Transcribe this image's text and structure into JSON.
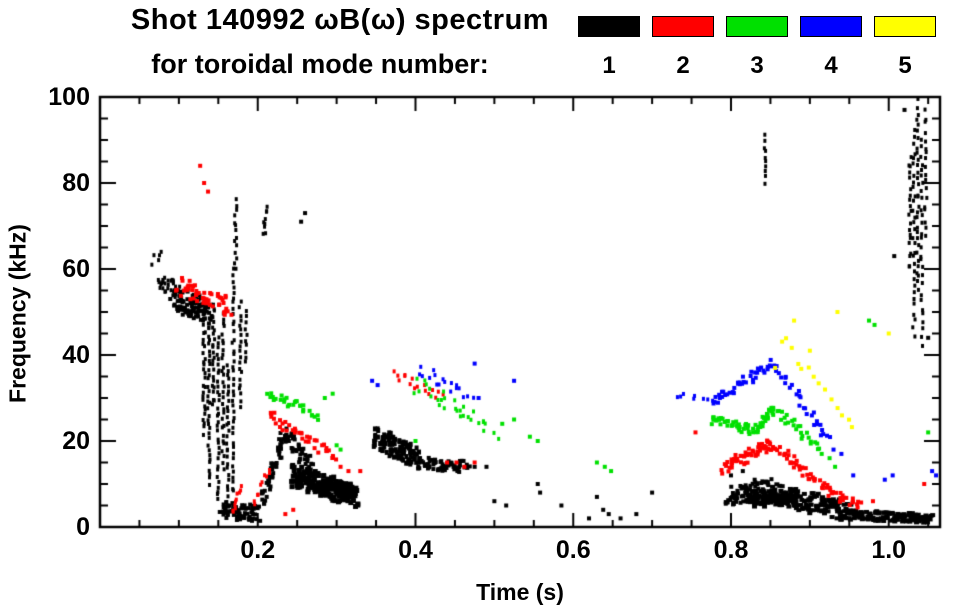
{
  "title": {
    "line1": "Shot 140992 ωB(ω) spectrum",
    "line2": "for toroidal mode number:"
  },
  "legend": {
    "entries": [
      {
        "label": "1",
        "color": "#000000"
      },
      {
        "label": "2",
        "color": "#ff0000"
      },
      {
        "label": "3",
        "color": "#00e000"
      },
      {
        "label": "4",
        "color": "#0000ff"
      },
      {
        "label": "5",
        "color": "#ffff00"
      }
    ]
  },
  "chart_data": {
    "type": "scatter",
    "title": "Shot 140992 ωB(ω) spectrum for toroidal mode number",
    "xlabel": "Time (s)",
    "ylabel": "Frequency (kHz)",
    "xlim": [
      0,
      1.065
    ],
    "ylim": [
      0,
      100
    ],
    "xticks": [
      0.2,
      0.4,
      0.6,
      0.8,
      1.0
    ],
    "xtick_labels": [
      "0.2",
      "0.4",
      "0.6",
      "0.8",
      "1.0"
    ],
    "yticks": [
      0,
      20,
      40,
      60,
      80,
      100
    ],
    "ytick_labels": [
      "0",
      "20",
      "40",
      "60",
      "80",
      "100"
    ],
    "x_minor": 0.05,
    "y_minor": 5,
    "grid": false,
    "legend_position": "top-right",
    "series": [
      {
        "name": "toroidal mode n=1",
        "label": "1",
        "color": "#000000",
        "segments": [
          {
            "t": [
              0.065,
              0.078
            ],
            "f": [
              62,
              63
            ],
            "n": 5,
            "jt": 0.003,
            "jf": 1
          },
          {
            "t": [
              0.075,
              0.1
            ],
            "f": [
              57,
              55
            ],
            "n": 30,
            "jt": 0.005,
            "jf": 2.2
          },
          {
            "t": [
              0.095,
              0.138
            ],
            "f": [
              53,
              50
            ],
            "n": 90,
            "jt": 0.006,
            "jf": 2.8,
            "w": 4,
            "h": 4
          },
          {
            "t": [
              0.132,
              0.132
            ],
            "f": [
              22,
              50
            ],
            "n": 28,
            "jt": 0.0015,
            "jf": 0.6
          },
          {
            "t": [
              0.138,
              0.138
            ],
            "f": [
              10,
              48
            ],
            "n": 34,
            "jt": 0.0015,
            "jf": 0.6
          },
          {
            "t": [
              0.144,
              0.144
            ],
            "f": [
              28,
              52
            ],
            "n": 24,
            "jt": 0.0015,
            "jf": 0.6
          },
          {
            "t": [
              0.15,
              0.15
            ],
            "f": [
              6,
              44
            ],
            "n": 32,
            "jt": 0.0015,
            "jf": 0.6
          },
          {
            "t": [
              0.156,
              0.156
            ],
            "f": [
              14,
              50
            ],
            "n": 30,
            "jt": 0.0015,
            "jf": 0.6
          },
          {
            "t": [
              0.162,
              0.162
            ],
            "f": [
              5,
              38
            ],
            "n": 28,
            "jt": 0.0015,
            "jf": 0.6
          },
          {
            "t": [
              0.169,
              0.169
            ],
            "f": [
              8,
              60
            ],
            "n": 40,
            "jt": 0.0015,
            "jf": 0.6
          },
          {
            "t": [
              0.172,
              0.172
            ],
            "f": [
              60,
              76
            ],
            "n": 14,
            "jt": 0.0015,
            "jf": 0.6
          },
          {
            "t": [
              0.178,
              0.178
            ],
            "f": [
              28,
              52
            ],
            "n": 20,
            "jt": 0.0015,
            "jf": 0.6
          },
          {
            "t": [
              0.185,
              0.185
            ],
            "f": [
              38,
              50
            ],
            "n": 10,
            "jt": 0.0015,
            "jf": 0.6
          },
          {
            "t": [
              0.208,
              0.211
            ],
            "f": [
              68,
              75
            ],
            "n": 9,
            "jt": 0.002,
            "jf": 0.8
          },
          {
            "t": [
              0.155,
              0.2
            ],
            "f": [
              4,
              3
            ],
            "n": 70,
            "jt": 0.004,
            "jf": 2,
            "w": 4,
            "h": 4
          },
          {
            "t": [
              0.205,
              0.235
            ],
            "f": [
              6,
              22
            ],
            "n": 55,
            "jt": 0.004,
            "jf": 2,
            "w": 4,
            "h": 4
          },
          {
            "t": [
              0.235,
              0.27
            ],
            "f": [
              22,
              13
            ],
            "n": 45,
            "jt": 0.004,
            "jf": 2,
            "w": 4,
            "h": 4
          },
          {
            "t": [
              0.245,
              0.325
            ],
            "f": [
              12,
              7
            ],
            "n": 160,
            "jt": 0.005,
            "jf": 2.6,
            "w": 5,
            "h": 5
          },
          {
            "t": [
              0.28,
              0.322
            ],
            "f": [
              9,
              8
            ],
            "n": 60,
            "jt": 0.004,
            "jf": 1.8,
            "w": 5,
            "h": 5
          },
          {
            "t": [
              0.35,
              0.4
            ],
            "f": [
              21,
              16
            ],
            "n": 100,
            "jt": 0.005,
            "jf": 2.4,
            "w": 4,
            "h": 5
          },
          {
            "t": [
              0.4,
              0.465
            ],
            "f": [
              15,
              14
            ],
            "n": 70,
            "jt": 0.005,
            "jf": 1.4,
            "w": 4,
            "h": 4
          },
          {
            "t": [
              0.843,
              0.843
            ],
            "f": [
              80,
              91
            ],
            "n": 10,
            "jt": 0.001,
            "jf": 0.6
          },
          {
            "t": [
              0.795,
              0.85
            ],
            "f": [
              7,
              9
            ],
            "n": 80,
            "jt": 0.004,
            "jf": 2.2,
            "w": 4,
            "h": 4
          },
          {
            "t": [
              0.85,
              0.95
            ],
            "f": [
              8,
              3.5
            ],
            "n": 140,
            "jt": 0.005,
            "jf": 2.4,
            "w": 5,
            "h": 4
          },
          {
            "t": [
              0.82,
              0.88
            ],
            "f": [
              6,
              7
            ],
            "n": 60,
            "jt": 0.004,
            "jf": 1.6,
            "w": 5,
            "h": 5
          },
          {
            "t": [
              0.95,
              1.055
            ],
            "f": [
              2.8,
              2
            ],
            "n": 120,
            "jt": 0.005,
            "jf": 1.1,
            "w": 5,
            "h": 4
          },
          {
            "t": [
              1.027,
              1.027
            ],
            "f": [
              60,
              86
            ],
            "n": 20,
            "jt": 0.0015,
            "jf": 0.8
          },
          {
            "t": [
              1.032,
              1.032
            ],
            "f": [
              45,
              92
            ],
            "n": 30,
            "jt": 0.0015,
            "jf": 0.8
          },
          {
            "t": [
              1.037,
              1.037
            ],
            "f": [
              55,
              99
            ],
            "n": 30,
            "jt": 0.0015,
            "jf": 0.8
          },
          {
            "t": [
              1.042,
              1.042
            ],
            "f": [
              42,
              90
            ],
            "n": 28,
            "jt": 0.0015,
            "jf": 0.8
          },
          {
            "t": [
              1.047,
              1.047
            ],
            "f": [
              68,
              97
            ],
            "n": 18,
            "jt": 0.0015,
            "jf": 0.8
          }
        ],
        "points": [
          [
            0.255,
            71
          ],
          [
            0.26,
            73
          ],
          [
            0.475,
            14
          ],
          [
            0.49,
            14
          ],
          [
            0.5,
            6
          ],
          [
            0.515,
            5
          ],
          [
            0.555,
            10
          ],
          [
            0.558,
            8
          ],
          [
            0.585,
            5
          ],
          [
            0.62,
            2
          ],
          [
            0.63,
            7
          ],
          [
            0.638,
            4
          ],
          [
            0.645,
            3
          ],
          [
            0.66,
            2
          ],
          [
            0.68,
            3
          ],
          [
            0.7,
            8
          ],
          [
            0.8,
            12
          ],
          [
            0.815,
            13
          ],
          [
            0.83,
            11
          ],
          [
            1.007,
            63
          ],
          [
            1.02,
            97
          ],
          [
            1.05,
            44
          ]
        ]
      },
      {
        "name": "toroidal mode n=2",
        "label": "2",
        "color": "#ff0000",
        "segments": [
          {
            "t": [
              0.1,
              0.165
            ],
            "f": [
              56,
              51
            ],
            "n": 55,
            "jt": 0.005,
            "jf": 2.2,
            "w": 4,
            "h": 4
          },
          {
            "t": [
              0.168,
              0.178
            ],
            "f": [
              3,
              9
            ],
            "n": 10,
            "jt": 0.002,
            "jf": 0.8
          },
          {
            "t": [
              0.195,
              0.215
            ],
            "f": [
              5,
              14
            ],
            "n": 10,
            "jt": 0.003,
            "jf": 1
          },
          {
            "t": [
              0.215,
              0.3
            ],
            "f": [
              26,
              16
            ],
            "n": 40,
            "jt": 0.004,
            "jf": 1.4,
            "w": 4,
            "h": 4
          },
          {
            "t": [
              0.37,
              0.435
            ],
            "f": [
              36,
              30
            ],
            "n": 16,
            "jt": 0.004,
            "jf": 1.2
          },
          {
            "t": [
              0.79,
              0.852
            ],
            "f": [
              13.5,
              19.5
            ],
            "n": 55,
            "jt": 0.004,
            "jf": 1.4,
            "w": 4,
            "h": 4
          },
          {
            "t": [
              0.852,
              0.925
            ],
            "f": [
              19.5,
              8
            ],
            "n": 45,
            "jt": 0.004,
            "jf": 1.4,
            "w": 4,
            "h": 4
          },
          {
            "t": [
              0.925,
              0.965
            ],
            "f": [
              8,
              5
            ],
            "n": 20,
            "jt": 0.004,
            "jf": 1,
            "w": 4,
            "h": 4
          }
        ],
        "points": [
          [
            0.127,
            84
          ],
          [
            0.132,
            80
          ],
          [
            0.137,
            78
          ],
          [
            0.235,
            3
          ],
          [
            0.245,
            4
          ],
          [
            0.305,
            14
          ],
          [
            0.315,
            13
          ],
          [
            0.33,
            13
          ],
          [
            0.44,
            15
          ],
          [
            0.452,
            15
          ],
          [
            0.462,
            14
          ],
          [
            0.475,
            15
          ],
          [
            0.755,
            22
          ],
          [
            0.98,
            6
          ],
          [
            1.045,
            10
          ]
        ]
      },
      {
        "name": "toroidal mode n=3",
        "label": "3",
        "color": "#00e000",
        "segments": [
          {
            "t": [
              0.215,
              0.275
            ],
            "f": [
              31,
              26
            ],
            "n": 28,
            "jt": 0.004,
            "jf": 1.2,
            "w": 4,
            "h": 4
          },
          {
            "t": [
              0.4,
              0.5
            ],
            "f": [
              33,
              22
            ],
            "n": 30,
            "jt": 0.006,
            "jf": 2
          },
          {
            "t": [
              0.775,
              0.83
            ],
            "f": [
              25,
              22.5
            ],
            "n": 40,
            "jt": 0.004,
            "jf": 1.2,
            "w": 4,
            "h": 4
          },
          {
            "t": [
              0.83,
              0.852
            ],
            "f": [
              22.5,
              27.5
            ],
            "n": 25,
            "jt": 0.003,
            "jf": 1.2,
            "w": 4,
            "h": 4
          },
          {
            "t": [
              0.852,
              0.91
            ],
            "f": [
              27.5,
              19
            ],
            "n": 28,
            "jt": 0.004,
            "jf": 1.3,
            "w": 4,
            "h": 4
          }
        ],
        "points": [
          [
            0.285,
            30
          ],
          [
            0.295,
            31
          ],
          [
            0.3,
            19
          ],
          [
            0.305,
            18
          ],
          [
            0.4,
            20
          ],
          [
            0.51,
            24
          ],
          [
            0.525,
            25
          ],
          [
            0.545,
            21
          ],
          [
            0.555,
            20
          ],
          [
            0.63,
            15
          ],
          [
            0.64,
            14
          ],
          [
            0.648,
            13
          ],
          [
            0.915,
            17
          ],
          [
            0.925,
            16
          ],
          [
            0.932,
            14
          ],
          [
            0.975,
            48
          ],
          [
            0.982,
            47
          ],
          [
            1.05,
            22
          ]
        ]
      },
      {
        "name": "toroidal mode n=4",
        "label": "4",
        "color": "#0000ff",
        "segments": [
          {
            "t": [
              0.405,
              0.47
            ],
            "f": [
              37,
              30
            ],
            "n": 18,
            "jt": 0.004,
            "jf": 1.5
          },
          {
            "t": [
              0.73,
              0.775
            ],
            "f": [
              31,
              30
            ],
            "n": 8,
            "jt": 0.004,
            "jf": 1
          },
          {
            "t": [
              0.775,
              0.852
            ],
            "f": [
              29,
              38
            ],
            "n": 40,
            "jt": 0.004,
            "jf": 1.3,
            "w": 4,
            "h": 4
          },
          {
            "t": [
              0.852,
              0.925
            ],
            "f": [
              38,
              20
            ],
            "n": 30,
            "jt": 0.004,
            "jf": 1.3,
            "w": 4,
            "h": 4
          }
        ],
        "points": [
          [
            0.345,
            34
          ],
          [
            0.352,
            33
          ],
          [
            0.475,
            38
          ],
          [
            0.48,
            30
          ],
          [
            0.525,
            34
          ],
          [
            0.93,
            18
          ],
          [
            0.94,
            17
          ],
          [
            0.955,
            12
          ],
          [
            0.995,
            11
          ],
          [
            1.005,
            12
          ],
          [
            1.055,
            13
          ],
          [
            1.06,
            12
          ]
        ]
      },
      {
        "name": "toroidal mode n=5",
        "label": "5",
        "color": "#ffff00",
        "segments": [
          {
            "t": [
              0.862,
              0.955
            ],
            "f": [
              44,
              24
            ],
            "n": 14,
            "jt": 0.003,
            "jf": 1.5,
            "w": 4,
            "h": 4
          }
        ],
        "points": [
          [
            0.856,
            37
          ],
          [
            0.88,
            48
          ],
          [
            0.9,
            41
          ],
          [
            0.935,
            50
          ],
          [
            1.0,
            45
          ]
        ]
      }
    ]
  }
}
